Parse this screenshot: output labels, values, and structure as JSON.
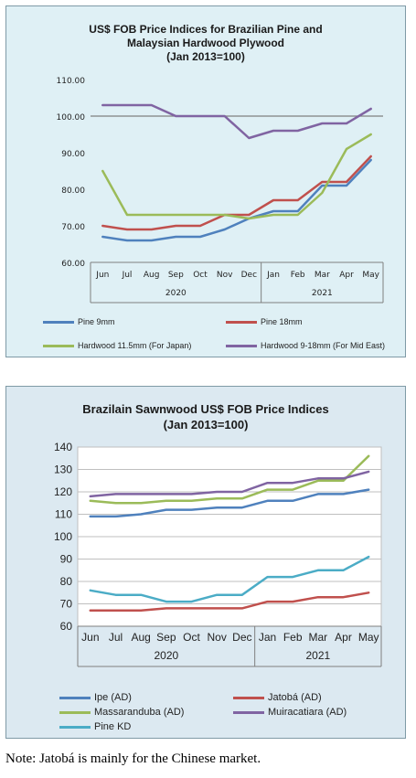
{
  "note": "Note: Jatobá is mainly for the Chinese market.",
  "chart_data": [
    {
      "type": "line",
      "title_lines": [
        "US$ FOB Price Indices for Brazilian Pine and",
        "Malaysian Hardwood Plywood",
        "(Jan 2013=100)"
      ],
      "categories": [
        "Jun",
        "Jul",
        "Aug",
        "Sep",
        "Oct",
        "Nov",
        "Dec",
        "Jan",
        "Feb",
        "Mar",
        "Apr",
        "May"
      ],
      "groups": [
        {
          "label": "2020",
          "count": 7
        },
        {
          "label": "2021",
          "count": 5
        }
      ],
      "ylim": [
        60,
        110
      ],
      "yticks": [
        "60.00",
        "70.00",
        "80.00",
        "90.00",
        "100.00",
        "110.00"
      ],
      "yticks_values": [
        60,
        70,
        80,
        90,
        100,
        110
      ],
      "reference_line": 100,
      "series": [
        {
          "name": "Pine 9mm",
          "color": "#4f81bd",
          "values": [
            67,
            66,
            66,
            67,
            67,
            69,
            72,
            74,
            74,
            81,
            81,
            88
          ]
        },
        {
          "name": "Pine 18mm",
          "color": "#c0504d",
          "values": [
            70,
            69,
            69,
            70,
            70,
            73,
            73,
            77,
            77,
            82,
            82,
            89
          ]
        },
        {
          "name": "Hardwood 11.5mm (For Japan)",
          "color": "#9bbb59",
          "values": [
            85,
            73,
            73,
            73,
            73,
            73,
            72,
            73,
            73,
            79,
            91,
            95
          ]
        },
        {
          "name": "Hardwood 9-18mm (For Mid East)",
          "color": "#8064a2",
          "values": [
            103,
            103,
            103,
            100,
            100,
            100,
            94,
            96,
            96,
            98,
            98,
            102
          ]
        }
      ]
    },
    {
      "type": "line",
      "title_lines": [
        "Brazilain Sawnwood US$ FOB Price Indices",
        "(Jan 2013=100)"
      ],
      "categories": [
        "Jun",
        "Jul",
        "Aug",
        "Sep",
        "Oct",
        "Nov",
        "Dec",
        "Jan",
        "Feb",
        "Mar",
        "Apr",
        "May"
      ],
      "groups": [
        {
          "label": "2020",
          "count": 7
        },
        {
          "label": "2021",
          "count": 5
        }
      ],
      "ylim": [
        60,
        140
      ],
      "yticks": [
        "60",
        "70",
        "80",
        "90",
        "100",
        "110",
        "120",
        "130",
        "140"
      ],
      "yticks_values": [
        60,
        70,
        80,
        90,
        100,
        110,
        120,
        130,
        140
      ],
      "series": [
        {
          "name": "Ipe (AD)",
          "color": "#4f81bd",
          "values": [
            109,
            109,
            110,
            112,
            112,
            113,
            113,
            116,
            116,
            119,
            119,
            121
          ]
        },
        {
          "name": "Jatobá (AD)",
          "color": "#c0504d",
          "values": [
            67,
            67,
            67,
            68,
            68,
            68,
            68,
            71,
            71,
            73,
            73,
            75
          ]
        },
        {
          "name": "Massaranduba (AD)",
          "color": "#9bbb59",
          "values": [
            116,
            115,
            115,
            116,
            116,
            117,
            117,
            121,
            121,
            125,
            125,
            136
          ]
        },
        {
          "name": "Muiracatiara (AD)",
          "color": "#8064a2",
          "values": [
            118,
            119,
            119,
            119,
            119,
            120,
            120,
            124,
            124,
            126,
            126,
            129
          ]
        },
        {
          "name": "Pine KD",
          "color": "#4bacc6",
          "values": [
            76,
            74,
            74,
            71,
            71,
            74,
            74,
            82,
            82,
            85,
            85,
            91
          ]
        }
      ]
    }
  ]
}
